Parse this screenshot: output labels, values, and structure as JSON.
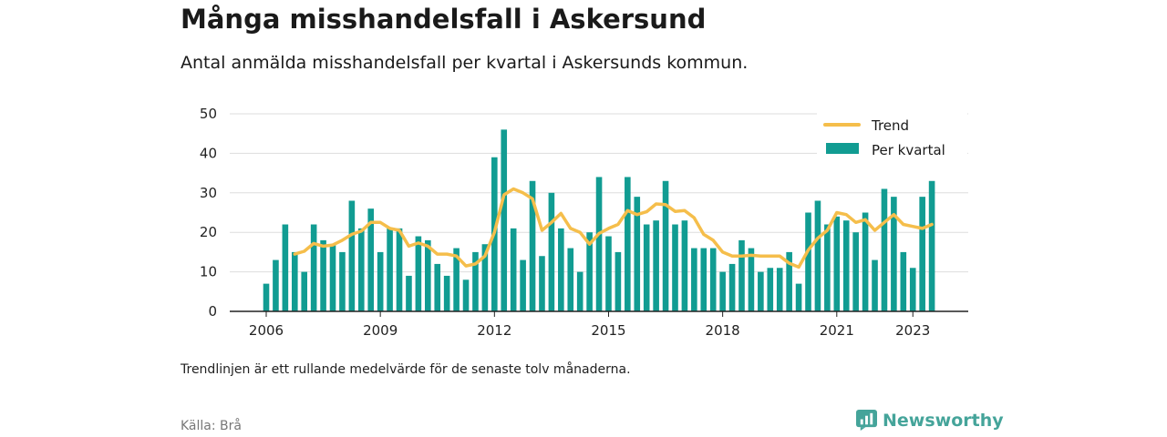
{
  "header": {
    "title": "Många misshandelsfall i Askersund",
    "subtitle": "Antal anmälda misshandelsfall per kvartal i Askersunds kommun."
  },
  "footer": {
    "note": "Trendlinjen är ett rullande medelvärde för de senaste tolv månaderna.",
    "source": "Källa: Brå",
    "brand": "Newsworthy"
  },
  "colors": {
    "bar": "#119c92",
    "trend": "#f5be4b",
    "axis": "#222222",
    "grid": "#dddddd",
    "brand": "#45a49a"
  },
  "icons": {
    "brand_logo": "newsworthy-logo-icon"
  },
  "chart_data": {
    "type": "bar",
    "title": "Många misshandelsfall i Askersund",
    "x_start": "2006 Q1",
    "x_ticks": [
      "2006",
      "2009",
      "2012",
      "2015",
      "2018",
      "2021",
      "2023"
    ],
    "ylim": [
      0,
      50
    ],
    "y_ticks": [
      0,
      10,
      20,
      30,
      40,
      50
    ],
    "grid": true,
    "legend_position": "top-right",
    "series": [
      {
        "name": "Per kvartal",
        "type": "bar",
        "color": "#119c92",
        "values": [
          7,
          13,
          22,
          15,
          10,
          22,
          18,
          17,
          15,
          28,
          21,
          26,
          15,
          21,
          21,
          9,
          19,
          18,
          12,
          9,
          16,
          8,
          15,
          17,
          39,
          46,
          21,
          13,
          33,
          14,
          30,
          21,
          16,
          10,
          20,
          34,
          19,
          15,
          34,
          29,
          22,
          23,
          33,
          22,
          23,
          16,
          16,
          16,
          10,
          12,
          18,
          16,
          10,
          11,
          11,
          15,
          7,
          25,
          28,
          22,
          24,
          23,
          20,
          25,
          13,
          31,
          29,
          15,
          11,
          29,
          33
        ]
      },
      {
        "name": "Trend",
        "type": "line",
        "color": "#f5be4b",
        "values": [
          null,
          null,
          null,
          14.5,
          15.2,
          17.2,
          16.5,
          16.8,
          18,
          19.5,
          20.3,
          22.5,
          22.5,
          21,
          20.5,
          16.5,
          17.3,
          16.5,
          14.5,
          14.5,
          14,
          11.5,
          12,
          14,
          20,
          29.5,
          31,
          30,
          28.5,
          20.5,
          22.5,
          24.8,
          21,
          20,
          17,
          19.7,
          21,
          22,
          25.5,
          24.5,
          25.2,
          27.2,
          27,
          25.3,
          25.5,
          23.7,
          19.5,
          18,
          15,
          14,
          14,
          14.2,
          14,
          14,
          14,
          12.2,
          11.2,
          15.5,
          18.5,
          20.5,
          25,
          24.5,
          22.5,
          23.2,
          20.5,
          22.5,
          24.5,
          22,
          21.5,
          21,
          22
        ]
      }
    ]
  }
}
